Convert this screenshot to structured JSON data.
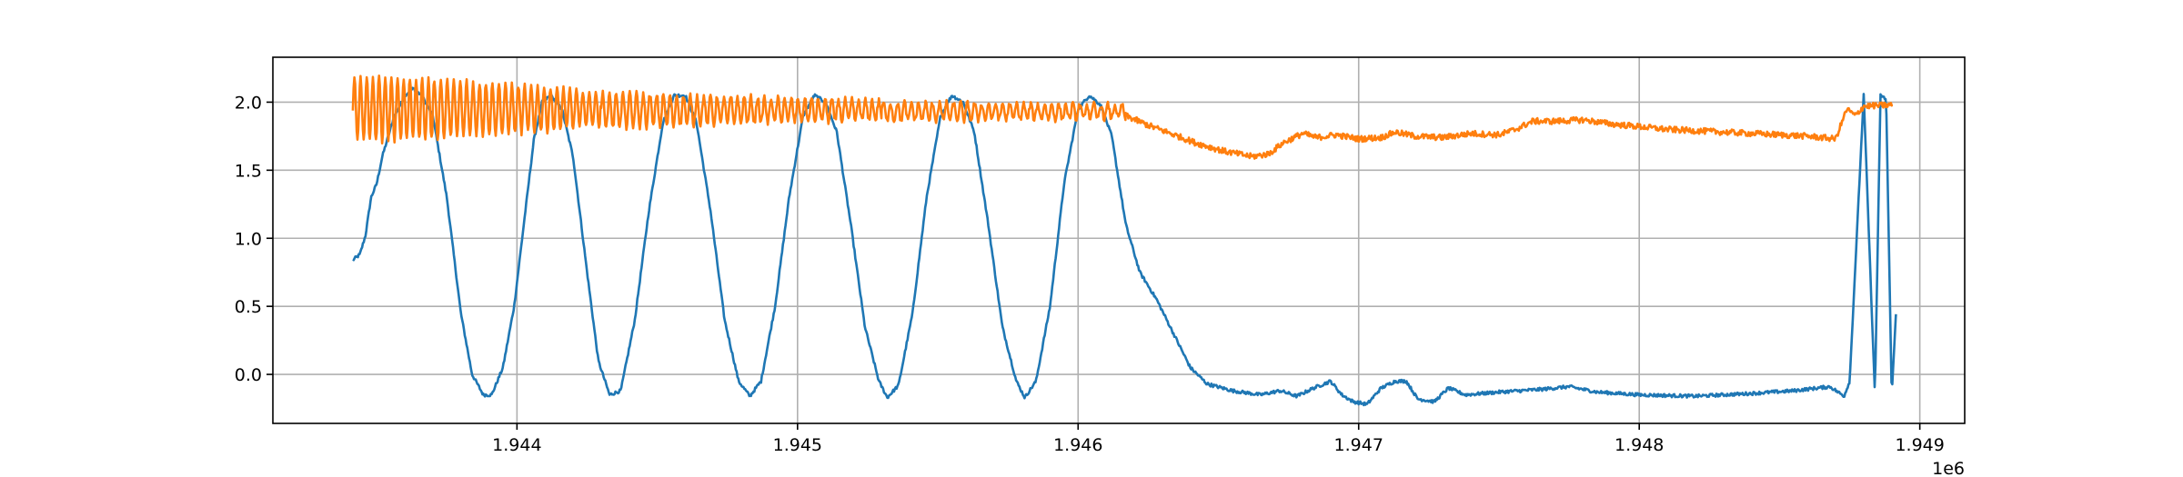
{
  "chart_data": {
    "type": "line",
    "title": "",
    "xlabel": "",
    "ylabel": "",
    "x_offset_label": "1e6",
    "xlim": [
      1943130,
      1949160
    ],
    "ylim": [
      -0.36,
      2.33
    ],
    "grid": true,
    "x_ticks": [
      {
        "value": 1944000,
        "label": "1.944"
      },
      {
        "value": 1945000,
        "label": "1.945"
      },
      {
        "value": 1946000,
        "label": "1.946"
      },
      {
        "value": 1947000,
        "label": "1.947"
      },
      {
        "value": 1948000,
        "label": "1.948"
      },
      {
        "value": 1949000,
        "label": "1.949"
      }
    ],
    "y_ticks": [
      {
        "value": 0.0,
        "label": "0.0"
      },
      {
        "value": 0.5,
        "label": "0.5"
      },
      {
        "value": 1.0,
        "label": "1.0"
      },
      {
        "value": 1.5,
        "label": "1.5"
      },
      {
        "value": 2.0,
        "label": "2.0"
      }
    ],
    "series": [
      {
        "color": "#1f77b4",
        "noise": 0.012,
        "points": [
          [
            1943415,
            0.84
          ],
          [
            1943440,
            0.88
          ],
          [
            1943460,
            1.02
          ],
          [
            1943480,
            1.3
          ],
          [
            1943500,
            1.4
          ],
          [
            1943520,
            1.6
          ],
          [
            1943560,
            1.88
          ],
          [
            1943600,
            2.05
          ],
          [
            1943630,
            2.1
          ],
          [
            1943660,
            2.05
          ],
          [
            1943700,
            1.9
          ],
          [
            1943750,
            1.3
          ],
          [
            1943800,
            0.45
          ],
          [
            1943840,
            0.0
          ],
          [
            1943880,
            -0.15
          ],
          [
            1943910,
            -0.15
          ],
          [
            1943950,
            0.05
          ],
          [
            1943990,
            0.5
          ],
          [
            1944030,
            1.2
          ],
          [
            1944060,
            1.72
          ],
          [
            1944090,
            2.0
          ],
          [
            1944120,
            2.05
          ],
          [
            1944160,
            1.95
          ],
          [
            1944200,
            1.6
          ],
          [
            1944250,
            0.75
          ],
          [
            1944290,
            0.1
          ],
          [
            1944330,
            -0.15
          ],
          [
            1944370,
            -0.12
          ],
          [
            1944420,
            0.4
          ],
          [
            1944470,
            1.2
          ],
          [
            1944520,
            1.85
          ],
          [
            1944560,
            2.05
          ],
          [
            1944600,
            2.05
          ],
          [
            1944640,
            1.85
          ],
          [
            1944690,
            1.2
          ],
          [
            1944740,
            0.4
          ],
          [
            1944790,
            -0.05
          ],
          [
            1944830,
            -0.16
          ],
          [
            1944870,
            -0.05
          ],
          [
            1944920,
            0.5
          ],
          [
            1944970,
            1.3
          ],
          [
            1945020,
            1.9
          ],
          [
            1945060,
            2.05
          ],
          [
            1945100,
            2.0
          ],
          [
            1945140,
            1.78
          ],
          [
            1945190,
            1.1
          ],
          [
            1945240,
            0.35
          ],
          [
            1945290,
            -0.05
          ],
          [
            1945320,
            -0.17
          ],
          [
            1945360,
            -0.08
          ],
          [
            1945410,
            0.45
          ],
          [
            1945460,
            1.3
          ],
          [
            1945510,
            1.9
          ],
          [
            1945550,
            2.05
          ],
          [
            1945590,
            2.0
          ],
          [
            1945630,
            1.78
          ],
          [
            1945680,
            1.1
          ],
          [
            1945730,
            0.35
          ],
          [
            1945780,
            -0.05
          ],
          [
            1945810,
            -0.17
          ],
          [
            1945850,
            -0.05
          ],
          [
            1945900,
            0.5
          ],
          [
            1945950,
            1.4
          ],
          [
            1946000,
            1.95
          ],
          [
            1946040,
            2.05
          ],
          [
            1946080,
            1.98
          ],
          [
            1946120,
            1.75
          ],
          [
            1946170,
            1.1
          ],
          [
            1946220,
            0.75
          ],
          [
            1946280,
            0.55
          ],
          [
            1946340,
            0.3
          ],
          [
            1946400,
            0.05
          ],
          [
            1946460,
            -0.07
          ],
          [
            1946550,
            -0.12
          ],
          [
            1946650,
            -0.15
          ],
          [
            1946720,
            -0.12
          ],
          [
            1946780,
            -0.16
          ],
          [
            1946840,
            -0.1
          ],
          [
            1946900,
            -0.05
          ],
          [
            1946940,
            -0.15
          ],
          [
            1946980,
            -0.2
          ],
          [
            1947030,
            -0.22
          ],
          [
            1947080,
            -0.1
          ],
          [
            1947130,
            -0.05
          ],
          [
            1947170,
            -0.05
          ],
          [
            1947210,
            -0.18
          ],
          [
            1947270,
            -0.2
          ],
          [
            1947320,
            -0.1
          ],
          [
            1947380,
            -0.15
          ],
          [
            1947500,
            -0.13
          ],
          [
            1947650,
            -0.11
          ],
          [
            1947750,
            -0.09
          ],
          [
            1947850,
            -0.13
          ],
          [
            1948000,
            -0.15
          ],
          [
            1948200,
            -0.16
          ],
          [
            1948400,
            -0.14
          ],
          [
            1948550,
            -0.12
          ],
          [
            1948680,
            -0.09
          ],
          [
            1948730,
            -0.16
          ],
          [
            1948750,
            -0.05
          ],
          [
            1948800,
            2.05
          ],
          [
            1948840,
            -0.15
          ],
          [
            1948860,
            2.05
          ],
          [
            1948880,
            2.02
          ],
          [
            1948900,
            -0.16
          ],
          [
            1948915,
            0.45
          ]
        ]
      },
      {
        "color": "#ff7f0e",
        "noise": 0.022,
        "segments": [
          {
            "from": 1943415,
            "to": 1943700,
            "period": 22,
            "amp_start": 0.24,
            "amp_end": 0.22,
            "center": 1.95
          },
          {
            "from": 1943700,
            "to": 1944300,
            "period": 23,
            "amp_start": 0.22,
            "amp_end": 0.13,
            "center": 1.95
          },
          {
            "from": 1944300,
            "to": 1945300,
            "period": 24,
            "amp_start": 0.13,
            "amp_end": 0.07,
            "center": 1.94
          },
          {
            "from": 1945300,
            "to": 1946170,
            "period": 25,
            "amp_start": 0.07,
            "amp_end": 0.05,
            "center": 1.93
          }
        ],
        "points": [
          [
            1946170,
            1.9
          ],
          [
            1946250,
            1.83
          ],
          [
            1946330,
            1.77
          ],
          [
            1946420,
            1.7
          ],
          [
            1946520,
            1.64
          ],
          [
            1946620,
            1.6
          ],
          [
            1946680,
            1.62
          ],
          [
            1946730,
            1.7
          ],
          [
            1946800,
            1.77
          ],
          [
            1946850,
            1.74
          ],
          [
            1946920,
            1.76
          ],
          [
            1947000,
            1.73
          ],
          [
            1947080,
            1.74
          ],
          [
            1947130,
            1.78
          ],
          [
            1947200,
            1.75
          ],
          [
            1947300,
            1.74
          ],
          [
            1947400,
            1.77
          ],
          [
            1947500,
            1.76
          ],
          [
            1947560,
            1.8
          ],
          [
            1947620,
            1.86
          ],
          [
            1947700,
            1.86
          ],
          [
            1947800,
            1.87
          ],
          [
            1947900,
            1.84
          ],
          [
            1948000,
            1.82
          ],
          [
            1948100,
            1.8
          ],
          [
            1948200,
            1.79
          ],
          [
            1948300,
            1.78
          ],
          [
            1948400,
            1.77
          ],
          [
            1948500,
            1.76
          ],
          [
            1948600,
            1.75
          ],
          [
            1948700,
            1.73
          ],
          [
            1948740,
            1.95
          ],
          [
            1948770,
            1.9
          ],
          [
            1948800,
            1.97
          ],
          [
            1948900,
            1.98
          ]
        ]
      }
    ]
  }
}
